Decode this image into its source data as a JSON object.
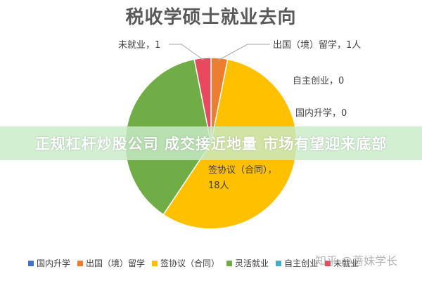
{
  "chart_data": {
    "type": "pie",
    "title": "税收学硕士就业去向",
    "categories": [
      "国内升学",
      "出国（境）留学",
      "签协议（合同）",
      "灵活就业",
      "自主创业",
      "未就业"
    ],
    "values": [
      0,
      1,
      18,
      12,
      0,
      1
    ],
    "colors": [
      "#4472C4",
      "#ED7D31",
      "#FFC000",
      "#70AD47",
      "#4BACC6",
      "#E8495E"
    ],
    "slice_labels": [
      "国内升学，0",
      "出国（境）留学，1人",
      "签协议（合同），18人",
      "",
      "自主创业，0",
      "未就业，1"
    ],
    "legend": [
      "国内升学",
      "出国（境）留学",
      "签协议（合同）",
      "灵活就业",
      "自主创业",
      "未就业"
    ],
    "legend_position": "bottom"
  },
  "banner": {
    "text": "正规杠杆炒股公司 成交接近地量 市场有望迎来底部"
  },
  "watermark": {
    "text": "知乎 @蔷妹学长"
  }
}
